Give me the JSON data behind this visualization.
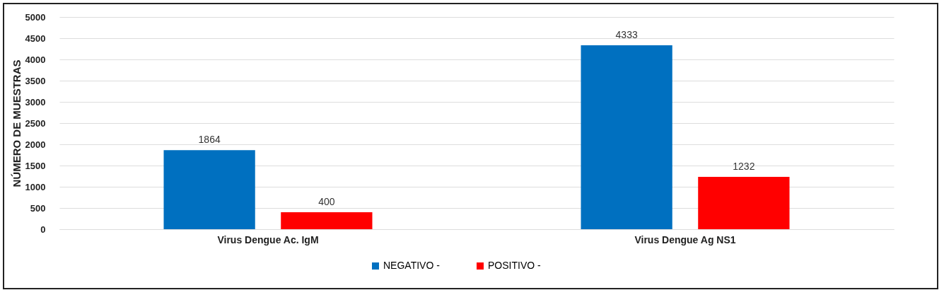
{
  "chart_data": {
    "type": "bar",
    "ylabel": "NÚMERO DE MUESTRAS",
    "categories": [
      "Virus Dengue Ac. IgM",
      "Virus Dengue Ag NS1"
    ],
    "series": [
      {
        "name": "NEGATIVO -",
        "color": "#0070c0",
        "values": [
          1864,
          4333
        ]
      },
      {
        "name": "POSITIVO -",
        "color": "#ff0000",
        "values": [
          400,
          1232
        ]
      }
    ],
    "ylim": [
      0,
      5000
    ],
    "yticks": [
      0,
      500,
      1000,
      1500,
      2000,
      2500,
      3000,
      3500,
      4000,
      4500,
      5000
    ],
    "grid": "y",
    "legend": "bottom",
    "data_labels": true
  }
}
